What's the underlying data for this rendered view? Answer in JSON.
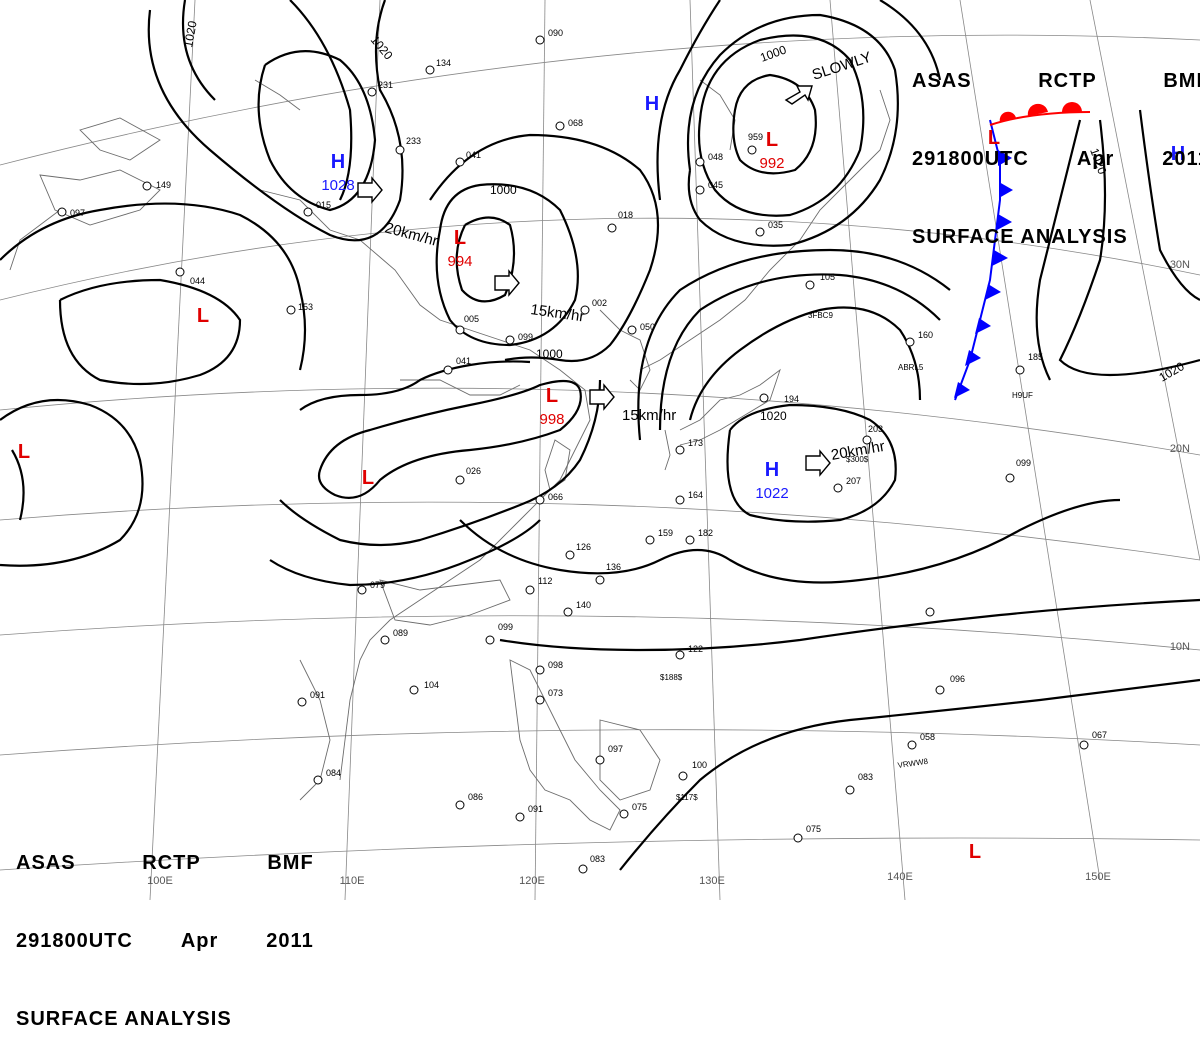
{
  "header": {
    "product": "ASAS",
    "station": "RCTP",
    "center": "BMF",
    "valid_time": "291800UTC",
    "month": "Apr",
    "year": "2011",
    "analysis_type": "SURFACE ANALYSIS"
  },
  "pressure_centers": [
    {
      "type": "H",
      "value": "1028",
      "color": "#1a1aff"
    },
    {
      "type": "H",
      "value": "",
      "color": "#1a1aff"
    },
    {
      "type": "H",
      "value": "1022",
      "color": "#1a1aff"
    },
    {
      "type": "H",
      "value": "",
      "color": "#1a1aff"
    },
    {
      "type": "L",
      "value": "994",
      "color": "#e00000"
    },
    {
      "type": "L",
      "value": "998",
      "color": "#e00000"
    },
    {
      "type": "L",
      "value": "992",
      "color": "#e00000"
    },
    {
      "type": "L",
      "value": "",
      "color": "#e00000"
    },
    {
      "type": "L",
      "value": "",
      "color": "#e00000"
    },
    {
      "type": "L",
      "value": "",
      "color": "#e00000"
    },
    {
      "type": "L",
      "value": "",
      "color": "#e00000"
    },
    {
      "type": "L",
      "value": "",
      "color": "#e00000"
    }
  ],
  "motion_labels": [
    "20km/hr",
    "15km/hr",
    "15km/hr",
    "20km/hr",
    "SLOWLY"
  ],
  "isobar_labels": [
    "1020",
    "1020",
    "1000",
    "1000",
    "1000",
    "1020",
    "1020",
    "1020"
  ],
  "longitude_labels": [
    "100E",
    "110E",
    "120E",
    "130E",
    "140E",
    "150E"
  ],
  "latitude_labels": [
    "30N",
    "20N",
    "10N"
  ],
  "station_values": [
    "149",
    "097",
    "044",
    "153",
    "015",
    "134",
    "231",
    "233",
    "041",
    "090",
    "068",
    "018",
    "005",
    "041",
    "099",
    "002",
    "050",
    "026",
    "066",
    "079",
    "089",
    "104",
    "091",
    "084",
    "086",
    "091",
    "083",
    "075",
    "097",
    "100",
    "073",
    "098",
    "099",
    "112",
    "126",
    "136",
    "140",
    "164",
    "159",
    "182",
    "122",
    "207",
    "203",
    "105",
    "160",
    "185",
    "194",
    "173",
    "048",
    "045",
    "035",
    "959",
    "058",
    "096",
    "083",
    "075",
    "067",
    "099"
  ],
  "station_codes": [
    "3FBC9",
    "ABRL5",
    "H9UF",
    "$300$",
    "$188$",
    "$117$",
    "VRWW8"
  ],
  "colors": {
    "front_cold": "#0000ff",
    "front_warm": "#ff0000",
    "high": "#1a1aff",
    "low": "#e00000"
  }
}
